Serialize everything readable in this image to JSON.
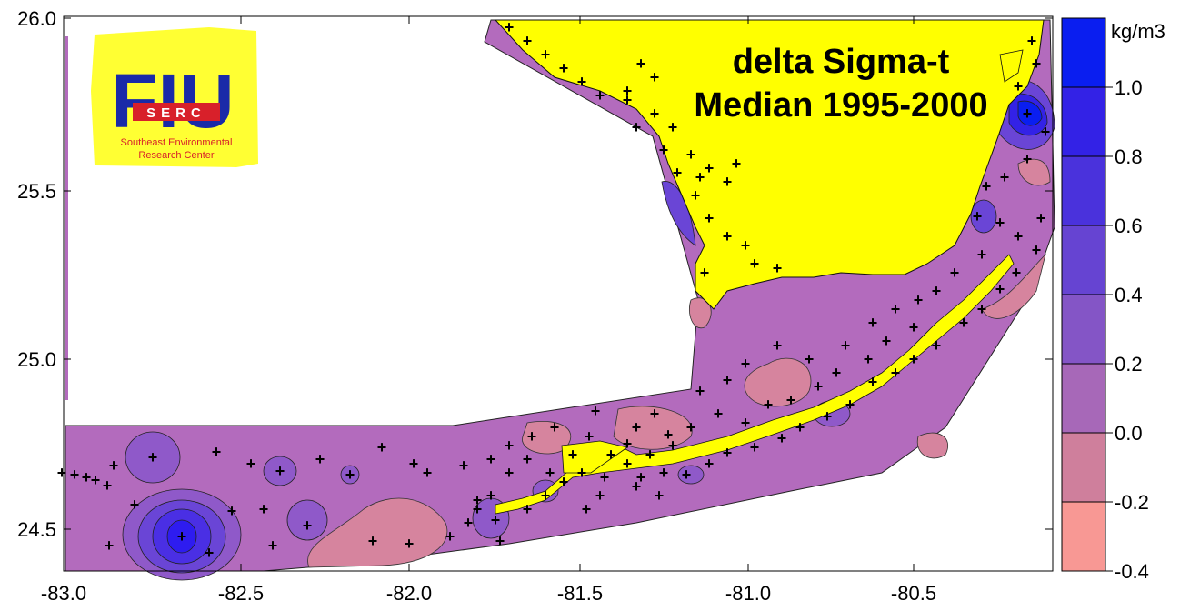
{
  "map": {
    "title_line1": "delta Sigma-t",
    "title_line2": "Median 1995-2000",
    "x_ticks": [
      "-83.0",
      "-82.5",
      "-82.0",
      "-81.5",
      "-81.0",
      "-80.5"
    ],
    "y_ticks": [
      "26.0",
      "25.5",
      "25.0",
      "24.5"
    ],
    "colors": {
      "land": "#ffff00",
      "sea_base": "#b36bbd",
      "sea_neg": "#d6849e",
      "sea_low": "#8f59c9",
      "sea_mid": "#6a45d6",
      "sea_high": "#4a2fe4",
      "sea_peak": "#2e1cf0",
      "marker": "#000000"
    }
  },
  "legend": {
    "unit": "kg/m3",
    "labels": [
      "1.0",
      "0.8",
      "0.6",
      "0.4",
      "0.2",
      "0.0",
      "-0.2",
      "-0.4"
    ],
    "colors": [
      "#0a1ef0",
      "#3322e6",
      "#4a32dc",
      "#6644d2",
      "#8455c6",
      "#a768b8",
      "#cf7f9c",
      "#f89894"
    ]
  },
  "logo": {
    "letters": "FIU",
    "abbr": "SERC",
    "line1": "Southeast Environmental",
    "line2": "Research Center"
  }
}
